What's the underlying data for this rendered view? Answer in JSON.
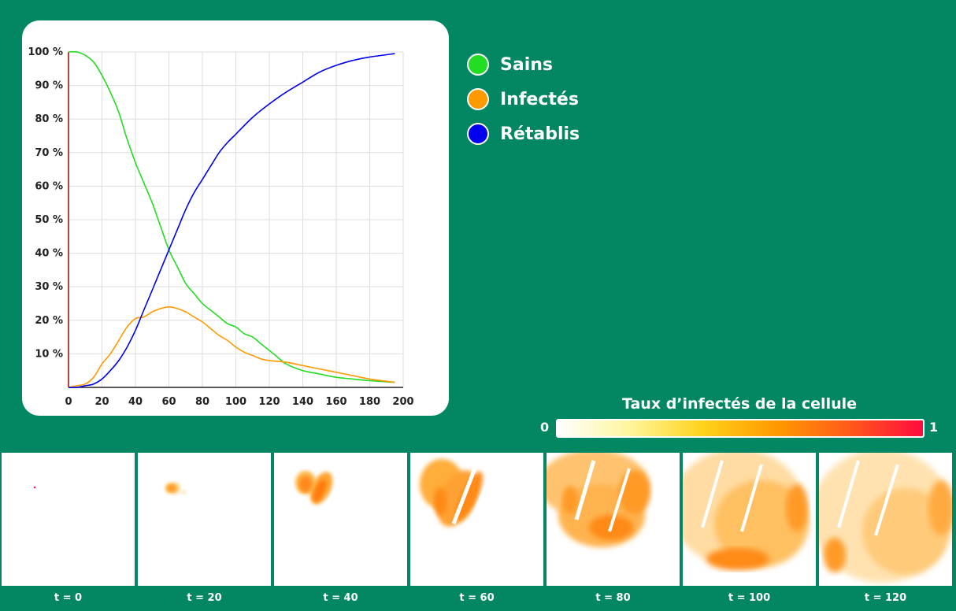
{
  "chart_data": {
    "type": "line",
    "xlim": [
      0,
      200
    ],
    "ylim": [
      0,
      100
    ],
    "x_ticks": [
      "0",
      "20",
      "40",
      "60",
      "80",
      "100",
      "120",
      "140",
      "160",
      "180",
      "200"
    ],
    "y_ticks": [
      "10 %",
      "20 %",
      "30 %",
      "40 %",
      "50 %",
      "60 %",
      "70 %",
      "80 %",
      "90 %",
      "100 %"
    ],
    "grid": true,
    "legend_position": "right",
    "series": [
      {
        "name": "Sains",
        "color": "#22dd22",
        "x": [
          0,
          5,
          10,
          15,
          20,
          25,
          30,
          35,
          40,
          45,
          50,
          55,
          60,
          65,
          70,
          75,
          80,
          85,
          90,
          95,
          100,
          105,
          110,
          115,
          120,
          125,
          130,
          140,
          150,
          160,
          170,
          180,
          195
        ],
        "y": [
          100,
          100,
          99,
          97,
          93,
          88,
          82,
          74,
          67,
          61,
          55,
          48,
          41,
          36,
          31,
          28,
          25,
          23,
          21,
          19,
          18,
          16,
          15,
          13,
          11,
          9,
          7,
          5,
          4,
          3,
          2.5,
          2,
          1.5
        ]
      },
      {
        "name": "Infectés",
        "color": "#ff9900",
        "x": [
          0,
          5,
          10,
          15,
          20,
          25,
          30,
          35,
          40,
          45,
          50,
          55,
          60,
          65,
          70,
          75,
          80,
          85,
          90,
          95,
          100,
          105,
          110,
          115,
          120,
          130,
          140,
          150,
          160,
          170,
          180,
          195
        ],
        "y": [
          0,
          0.5,
          1,
          3,
          7,
          10,
          14,
          18,
          20.5,
          21,
          22.5,
          23.5,
          24,
          23.5,
          22.5,
          21,
          19.5,
          17.5,
          15.5,
          14,
          12,
          10.5,
          9.5,
          8.5,
          8,
          7.5,
          6.5,
          5.5,
          4.5,
          3.5,
          2.5,
          1.5
        ]
      },
      {
        "name": "Rétablis",
        "color": "#0000ee",
        "x": [
          0,
          5,
          10,
          15,
          20,
          25,
          30,
          35,
          40,
          45,
          50,
          55,
          60,
          65,
          70,
          75,
          80,
          85,
          90,
          95,
          100,
          110,
          120,
          130,
          140,
          150,
          160,
          170,
          180,
          195
        ],
        "y": [
          0,
          0,
          0.5,
          1,
          2.5,
          5,
          8,
          12,
          17,
          23,
          29,
          35,
          41,
          47,
          53,
          58,
          62,
          66,
          70,
          73,
          75.5,
          80.5,
          84.5,
          88,
          91,
          94,
          96,
          97.5,
          98.5,
          99.5
        ]
      }
    ]
  },
  "colorbar": {
    "title": "Taux d’infectés de la cellule",
    "min_label": "0",
    "max_label": "1",
    "gradient_stops": [
      "#ffffff",
      "#fff59a",
      "#ffd11a",
      "#ff9900",
      "#ff5a1a",
      "#ff0a3c"
    ]
  },
  "snapshots": [
    {
      "label": "t = 0"
    },
    {
      "label": "t = 20"
    },
    {
      "label": "t = 40"
    },
    {
      "label": "t = 60"
    },
    {
      "label": "t = 80"
    },
    {
      "label": "t = 100"
    },
    {
      "label": "t = 120"
    }
  ]
}
